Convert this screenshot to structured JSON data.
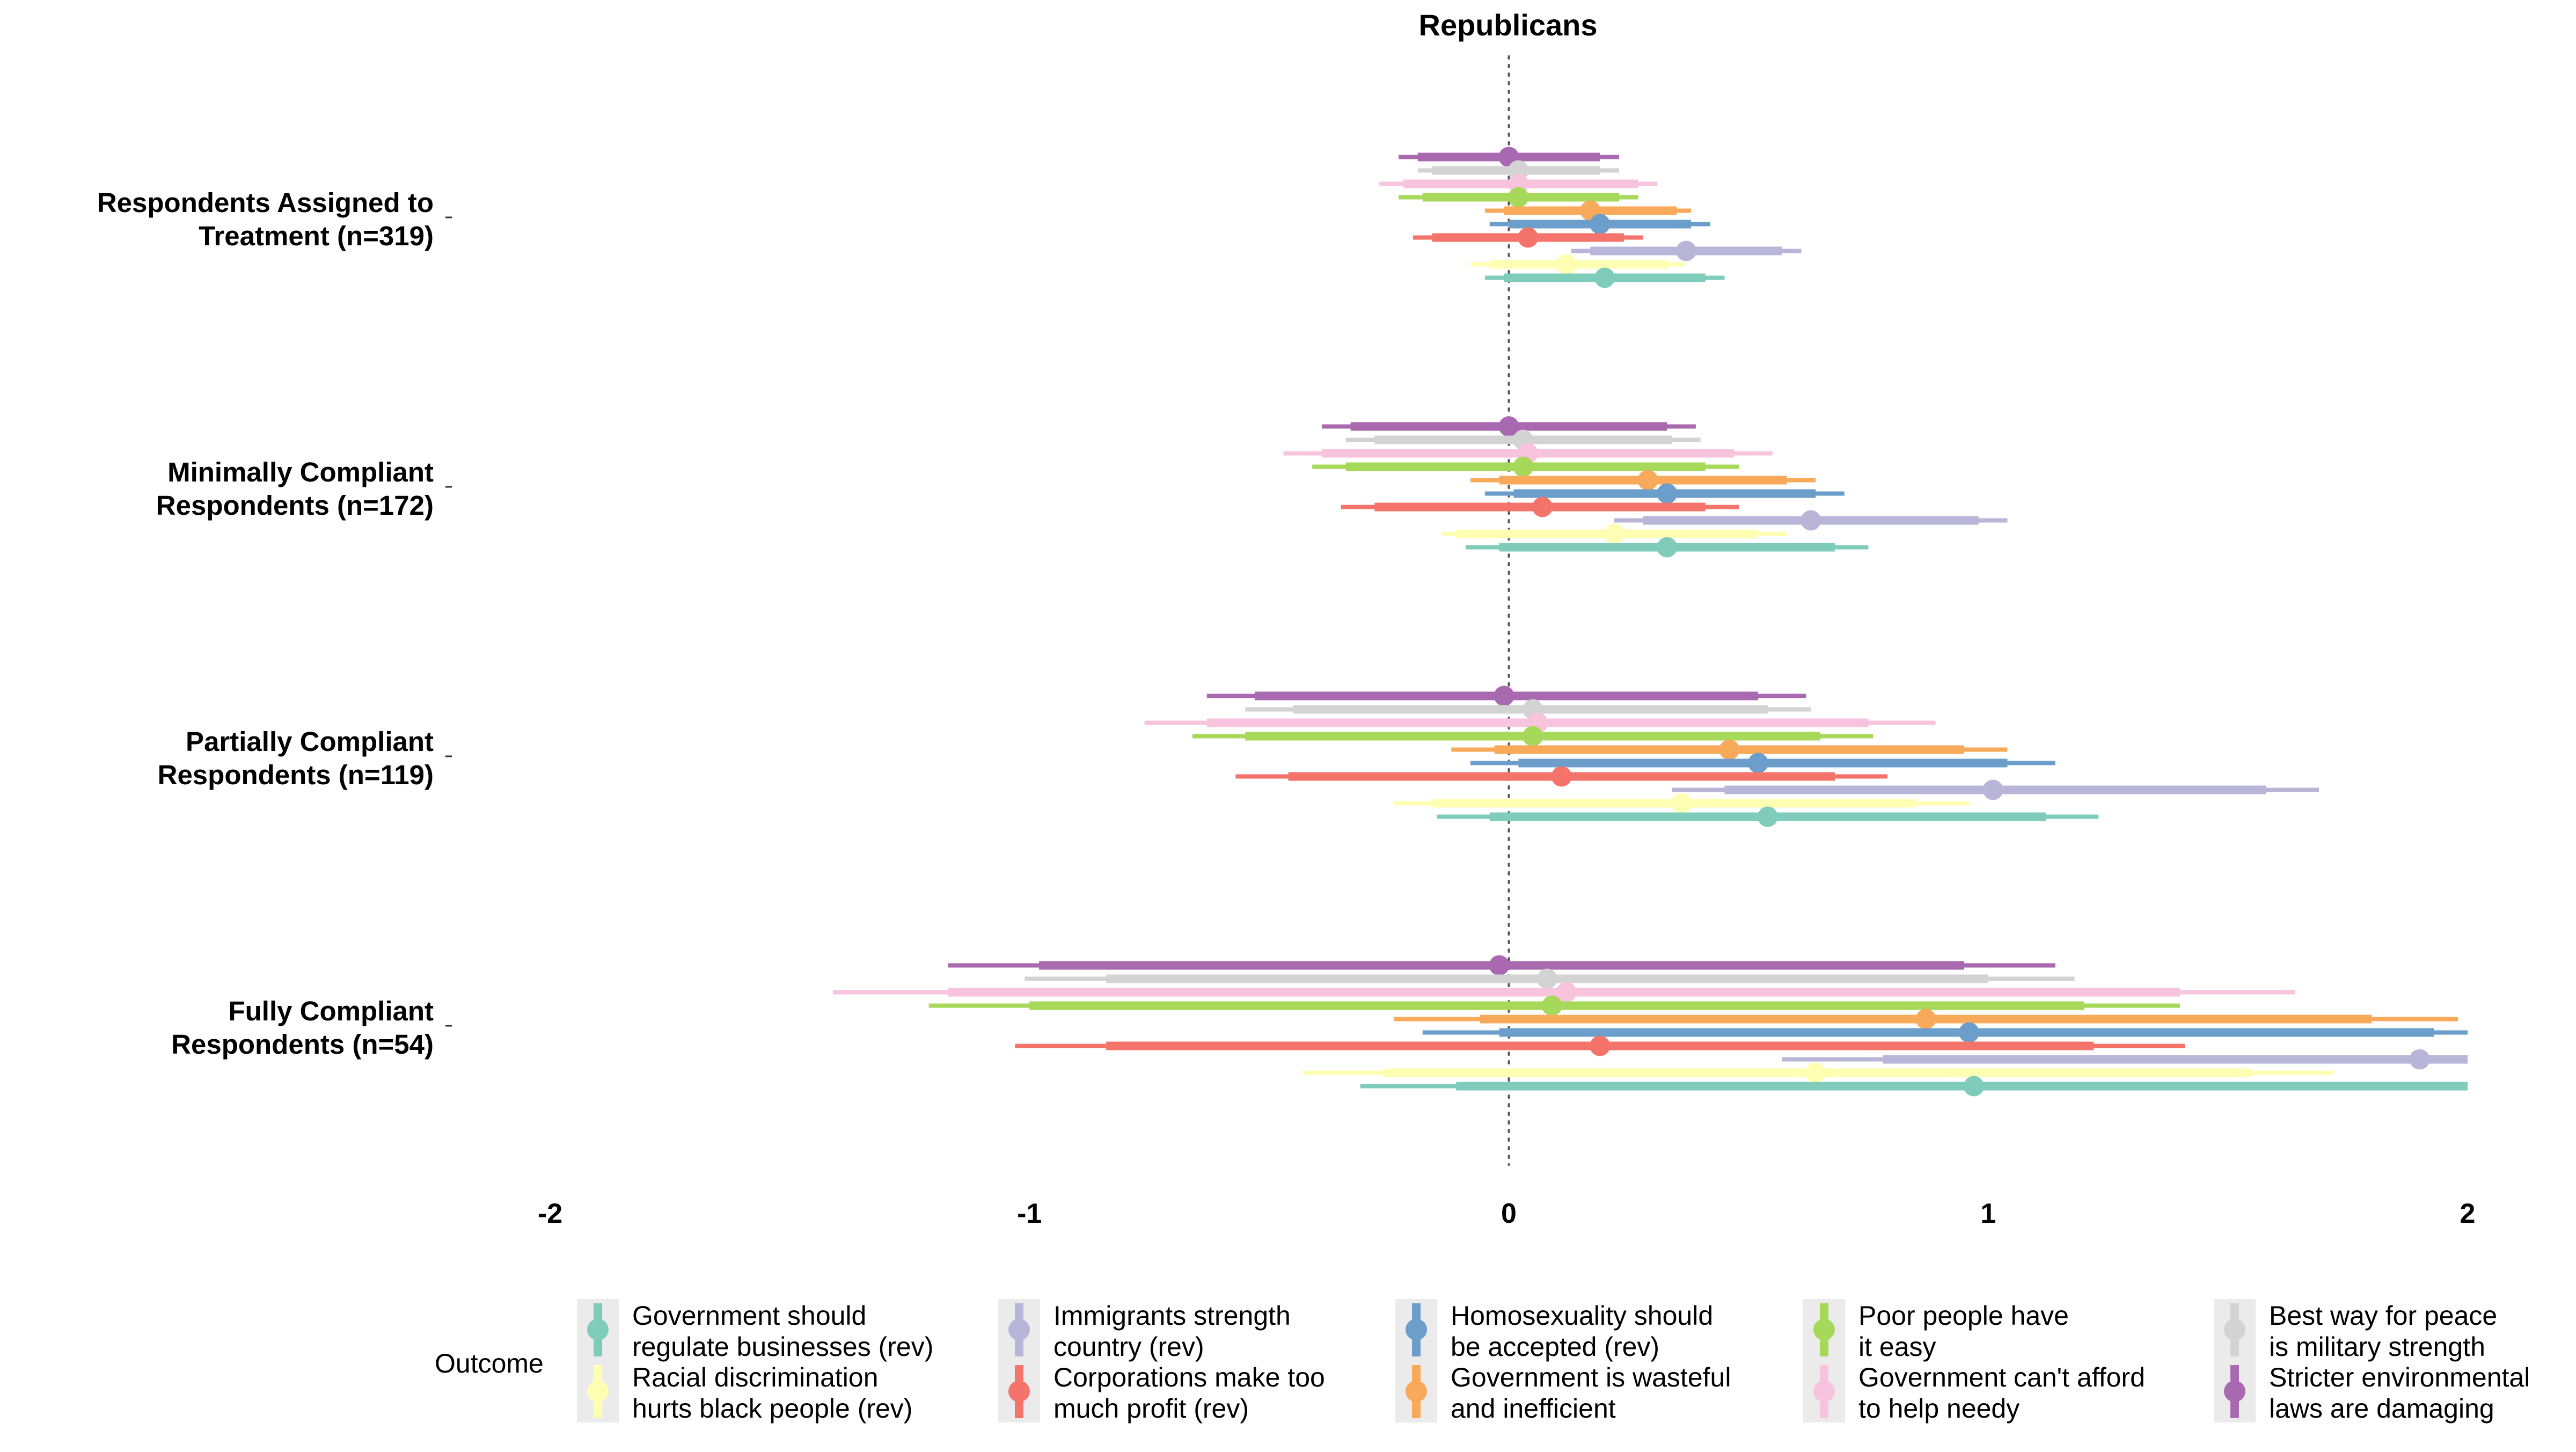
{
  "chart_data": {
    "type": "coefficient-plot",
    "title": "Republicans",
    "xlabel": "",
    "ylabel": "",
    "xlim": [
      -2,
      2
    ],
    "xticks": [
      -2,
      -1,
      0,
      1,
      2
    ],
    "xtick_labels": [
      "-2",
      "-1",
      "0",
      "1",
      "2"
    ],
    "reference_line": 0,
    "grid": false,
    "legend": {
      "position": "bottom",
      "title": "Outcome",
      "entries": [
        {
          "key": "gov_regulate",
          "lines": [
            "Government should",
            "regulate businesses (rev)"
          ]
        },
        {
          "key": "racial",
          "lines": [
            "Racial discrimination",
            "hurts black people (rev)"
          ]
        },
        {
          "key": "immigrants",
          "lines": [
            "Immigrants strength",
            "country (rev)"
          ]
        },
        {
          "key": "corporations",
          "lines": [
            "Corporations make too",
            "much profit (rev)"
          ]
        },
        {
          "key": "homosexuality",
          "lines": [
            "Homosexuality should",
            "be accepted (rev)"
          ]
        },
        {
          "key": "wasteful",
          "lines": [
            "Government is wasteful",
            "and inefficient"
          ]
        },
        {
          "key": "poor",
          "lines": [
            "Poor people have",
            "it easy"
          ]
        },
        {
          "key": "needy",
          "lines": [
            "Government can't afford",
            "to help needy"
          ]
        },
        {
          "key": "military",
          "lines": [
            "Best way for peace",
            "is military strength"
          ]
        },
        {
          "key": "environment",
          "lines": [
            "Stricter environmental",
            "laws are damaging"
          ]
        }
      ]
    },
    "series_order_bottom_to_top": [
      "gov_regulate",
      "racial",
      "immigrants",
      "corporations",
      "homosexuality",
      "wasteful",
      "poor",
      "needy",
      "military",
      "environment"
    ],
    "colors": {
      "gov_regulate": "#7fccbb",
      "racial": "#ffffb3",
      "immigrants": "#b9b5d8",
      "corporations": "#f4736a",
      "homosexuality": "#6c9ecb",
      "wasteful": "#f8a95a",
      "poor": "#a6d85a",
      "needy": "#f8c3dd",
      "military": "#d3d3d3",
      "environment": "#a869b0"
    },
    "groups": [
      {
        "label": [
          "Respondents Assigned to",
          "Treatment (n=319)"
        ],
        "estimates": {
          "gov_regulate": {
            "est": 0.2,
            "ci90": [
              -0.01,
              0.41
            ],
            "ci95": [
              -0.05,
              0.45
            ]
          },
          "racial": {
            "est": 0.12,
            "ci90": [
              -0.04,
              0.33
            ],
            "ci95": [
              -0.08,
              0.37
            ]
          },
          "immigrants": {
            "est": 0.37,
            "ci90": [
              0.17,
              0.57
            ],
            "ci95": [
              0.13,
              0.61
            ]
          },
          "corporations": {
            "est": 0.04,
            "ci90": [
              -0.16,
              0.24
            ],
            "ci95": [
              -0.2,
              0.28
            ]
          },
          "homosexuality": {
            "est": 0.19,
            "ci90": [
              0.0,
              0.38
            ],
            "ci95": [
              -0.04,
              0.42
            ]
          },
          "wasteful": {
            "est": 0.17,
            "ci90": [
              -0.01,
              0.35
            ],
            "ci95": [
              -0.05,
              0.38
            ]
          },
          "poor": {
            "est": 0.02,
            "ci90": [
              -0.18,
              0.23
            ],
            "ci95": [
              -0.23,
              0.27
            ]
          },
          "needy": {
            "est": 0.02,
            "ci90": [
              -0.22,
              0.27
            ],
            "ci95": [
              -0.27,
              0.31
            ]
          },
          "military": {
            "est": 0.02,
            "ci90": [
              -0.16,
              0.19
            ],
            "ci95": [
              -0.19,
              0.23
            ]
          },
          "environment": {
            "est": 0.0,
            "ci90": [
              -0.19,
              0.19
            ],
            "ci95": [
              -0.23,
              0.23
            ]
          }
        }
      },
      {
        "label": [
          "Minimally Compliant",
          "Respondents (n=172)"
        ],
        "estimates": {
          "gov_regulate": {
            "est": 0.33,
            "ci90": [
              -0.02,
              0.68
            ],
            "ci95": [
              -0.09,
              0.75
            ]
          },
          "racial": {
            "est": 0.22,
            "ci90": [
              -0.11,
              0.52
            ],
            "ci95": [
              -0.14,
              0.58
            ]
          },
          "immigrants": {
            "est": 0.63,
            "ci90": [
              0.28,
              0.98
            ],
            "ci95": [
              0.22,
              1.04
            ]
          },
          "corporations": {
            "est": 0.07,
            "ci90": [
              -0.28,
              0.41
            ],
            "ci95": [
              -0.35,
              0.48
            ]
          },
          "homosexuality": {
            "est": 0.33,
            "ci90": [
              0.01,
              0.64
            ],
            "ci95": [
              -0.05,
              0.7
            ]
          },
          "wasteful": {
            "est": 0.29,
            "ci90": [
              -0.02,
              0.58
            ],
            "ci95": [
              -0.08,
              0.64
            ]
          },
          "poor": {
            "est": 0.03,
            "ci90": [
              -0.34,
              0.41
            ],
            "ci95": [
              -0.41,
              0.48
            ]
          },
          "needy": {
            "est": 0.04,
            "ci90": [
              -0.39,
              0.47
            ],
            "ci95": [
              -0.47,
              0.55
            ]
          },
          "military": {
            "est": 0.03,
            "ci90": [
              -0.28,
              0.34
            ],
            "ci95": [
              -0.34,
              0.4
            ]
          },
          "environment": {
            "est": 0.0,
            "ci90": [
              -0.33,
              0.33
            ],
            "ci95": [
              -0.39,
              0.39
            ]
          }
        }
      },
      {
        "label": [
          "Partially Compliant",
          "Respondents (n=119)"
        ],
        "estimates": {
          "gov_regulate": {
            "est": 0.54,
            "ci90": [
              -0.04,
              1.12
            ],
            "ci95": [
              -0.15,
              1.23
            ]
          },
          "racial": {
            "est": 0.36,
            "ci90": [
              -0.16,
              0.85
            ],
            "ci95": [
              -0.24,
              0.96
            ]
          },
          "immigrants": {
            "est": 1.01,
            "ci90": [
              0.45,
              1.58
            ],
            "ci95": [
              0.34,
              1.69
            ]
          },
          "corporations": {
            "est": 0.11,
            "ci90": [
              -0.46,
              0.68
            ],
            "ci95": [
              -0.57,
              0.79
            ]
          },
          "homosexuality": {
            "est": 0.52,
            "ci90": [
              0.02,
              1.04
            ],
            "ci95": [
              -0.08,
              1.14
            ]
          },
          "wasteful": {
            "est": 0.46,
            "ci90": [
              -0.03,
              0.95
            ],
            "ci95": [
              -0.12,
              1.04
            ]
          },
          "poor": {
            "est": 0.05,
            "ci90": [
              -0.55,
              0.65
            ],
            "ci95": [
              -0.66,
              0.76
            ]
          },
          "needy": {
            "est": 0.06,
            "ci90": [
              -0.63,
              0.75
            ],
            "ci95": [
              -0.76,
              0.89
            ]
          },
          "military": {
            "est": 0.05,
            "ci90": [
              -0.45,
              0.54
            ],
            "ci95": [
              -0.55,
              0.63
            ]
          },
          "environment": {
            "est": -0.01,
            "ci90": [
              -0.53,
              0.52
            ],
            "ci95": [
              -0.63,
              0.62
            ]
          }
        }
      },
      {
        "label": [
          "Fully Compliant",
          "Respondents (n=54)"
        ],
        "estimates": {
          "gov_regulate": {
            "est": 0.97,
            "ci90": [
              -0.11,
              2.0
            ],
            "ci95": [
              -0.31,
              2.0
            ]
          },
          "racial": {
            "est": 0.64,
            "ci90": [
              -0.26,
              1.55
            ],
            "ci95": [
              -0.43,
              1.72
            ]
          },
          "immigrants": {
            "est": 1.9,
            "ci90": [
              0.78,
              2.0
            ],
            "ci95": [
              0.57,
              2.0
            ]
          },
          "corporations": {
            "est": 0.19,
            "ci90": [
              -0.84,
              1.22
            ],
            "ci95": [
              -1.03,
              1.41
            ]
          },
          "homosexuality": {
            "est": 0.96,
            "ci90": [
              -0.02,
              1.93
            ],
            "ci95": [
              -0.18,
              2.0
            ]
          },
          "wasteful": {
            "est": 0.87,
            "ci90": [
              -0.06,
              1.8
            ],
            "ci95": [
              -0.24,
              1.98
            ]
          },
          "poor": {
            "est": 0.09,
            "ci90": [
              -1.0,
              1.2
            ],
            "ci95": [
              -1.21,
              1.4
            ]
          },
          "needy": {
            "est": 0.12,
            "ci90": [
              -1.17,
              1.4
            ],
            "ci95": [
              -1.41,
              1.64
            ]
          },
          "military": {
            "est": 0.08,
            "ci90": [
              -0.84,
              1.0
            ],
            "ci95": [
              -1.01,
              1.18
            ]
          },
          "environment": {
            "est": -0.02,
            "ci90": [
              -0.98,
              0.95
            ],
            "ci95": [
              -1.17,
              1.14
            ]
          }
        }
      }
    ]
  }
}
